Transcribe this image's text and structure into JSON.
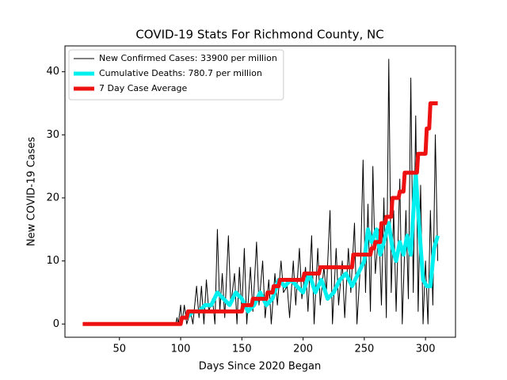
{
  "chart_data": {
    "type": "line",
    "title": "COVID-19 Stats For Richmond County, NC",
    "x_label": "Days Since 2020 Began",
    "y_label": "New COVID-19 Cases",
    "xlim": [
      5.5,
      324.5
    ],
    "xticks": [
      50,
      100,
      150,
      200,
      250,
      300
    ],
    "ylim": [
      -2.1,
      44.1
    ],
    "yticks": [
      0,
      10,
      20,
      30,
      40
    ],
    "legend": "upper left",
    "series": [
      {
        "name": "New Confirmed Cases: 33900 per million",
        "color": "#000000",
        "linewidth": 1,
        "x": [
          20,
          96,
          97,
          98,
          100,
          101,
          103,
          105,
          108,
          110,
          113,
          115,
          117,
          119,
          121,
          123,
          126,
          128,
          130,
          132,
          134,
          136,
          139,
          141,
          144,
          146,
          148,
          150,
          152,
          154,
          157,
          159,
          162,
          164,
          167,
          169,
          172,
          174,
          177,
          179,
          182,
          184,
          187,
          189,
          192,
          194,
          197,
          199,
          202,
          204,
          207,
          209,
          212,
          214,
          217,
          219,
          222,
          224,
          227,
          229,
          232,
          234,
          237,
          239,
          242,
          244,
          247,
          249,
          251,
          253,
          255,
          257,
          259,
          262,
          264,
          266,
          268,
          270,
          272,
          274,
          276,
          279,
          281,
          284,
          286,
          288,
          290,
          292,
          294,
          296,
          298,
          300,
          302,
          304,
          306,
          308,
          310
        ],
        "values": [
          0,
          0,
          1,
          0,
          3,
          0,
          3,
          0,
          2,
          0,
          6,
          1,
          6,
          0,
          7,
          2,
          4,
          0,
          15,
          2,
          8,
          1,
          14,
          3,
          8,
          0,
          9,
          2,
          12,
          0,
          9,
          2,
          13,
          3,
          10,
          1,
          7,
          0,
          8,
          3,
          10,
          5,
          6,
          1,
          10,
          3,
          12,
          4,
          9,
          2,
          14,
          0,
          12,
          3,
          9,
          5,
          18,
          0,
          12,
          3,
          10,
          1,
          12,
          5,
          16,
          0,
          10,
          26,
          5,
          19,
          2,
          25,
          8,
          15,
          3,
          20,
          1,
          42,
          5,
          18,
          2,
          23,
          0,
          18,
          4,
          39,
          5,
          33,
          2,
          22,
          0,
          10,
          0,
          18,
          3,
          30,
          10
        ]
      },
      {
        "name": "Cumulative Deaths: 780.7 per million",
        "color": "#00f0f0",
        "linewidth": 5,
        "x": [
          100,
          105,
          110,
          115,
          120,
          125,
          130,
          135,
          140,
          145,
          150,
          155,
          160,
          165,
          170,
          175,
          180,
          185,
          190,
          195,
          200,
          205,
          210,
          215,
          220,
          225,
          230,
          235,
          240,
          245,
          250,
          253,
          256,
          260,
          263,
          266,
          270,
          273,
          276,
          279,
          282,
          285,
          288,
          292,
          295,
          298,
          301,
          304,
          307,
          310
        ],
        "values": [
          1,
          1,
          2,
          2,
          3,
          3,
          5,
          4,
          3,
          5,
          4,
          2,
          3,
          5,
          3,
          4,
          7,
          6,
          7,
          6,
          5,
          8,
          5,
          7,
          4,
          5,
          7,
          8,
          6,
          8,
          10,
          15,
          13,
          15,
          11,
          13,
          16,
          12,
          10,
          13,
          11,
          14,
          11,
          24,
          15,
          7,
          6,
          6,
          12,
          14
        ]
      },
      {
        "name": "7 Day Case Average",
        "color": "#ee1111",
        "linewidth": 5,
        "x": [
          20,
          100,
          101,
          105,
          106,
          150,
          151,
          158,
          159,
          170,
          171,
          175,
          176,
          180,
          181,
          200,
          201,
          213,
          214,
          240,
          241,
          255,
          256,
          258,
          259,
          263,
          264,
          267,
          268,
          272,
          273,
          278,
          279,
          282,
          283,
          293,
          294,
          300,
          301,
          303,
          304,
          310
        ],
        "values": [
          0,
          0,
          1,
          1,
          2,
          2,
          3,
          3,
          4,
          4,
          5,
          5,
          6,
          6,
          7,
          7,
          8,
          8,
          9,
          9,
          11,
          11,
          12,
          12,
          13,
          13,
          16,
          16,
          17,
          17,
          20,
          20,
          21,
          21,
          24,
          24,
          27,
          27,
          31,
          31,
          35,
          35
        ]
      }
    ]
  }
}
